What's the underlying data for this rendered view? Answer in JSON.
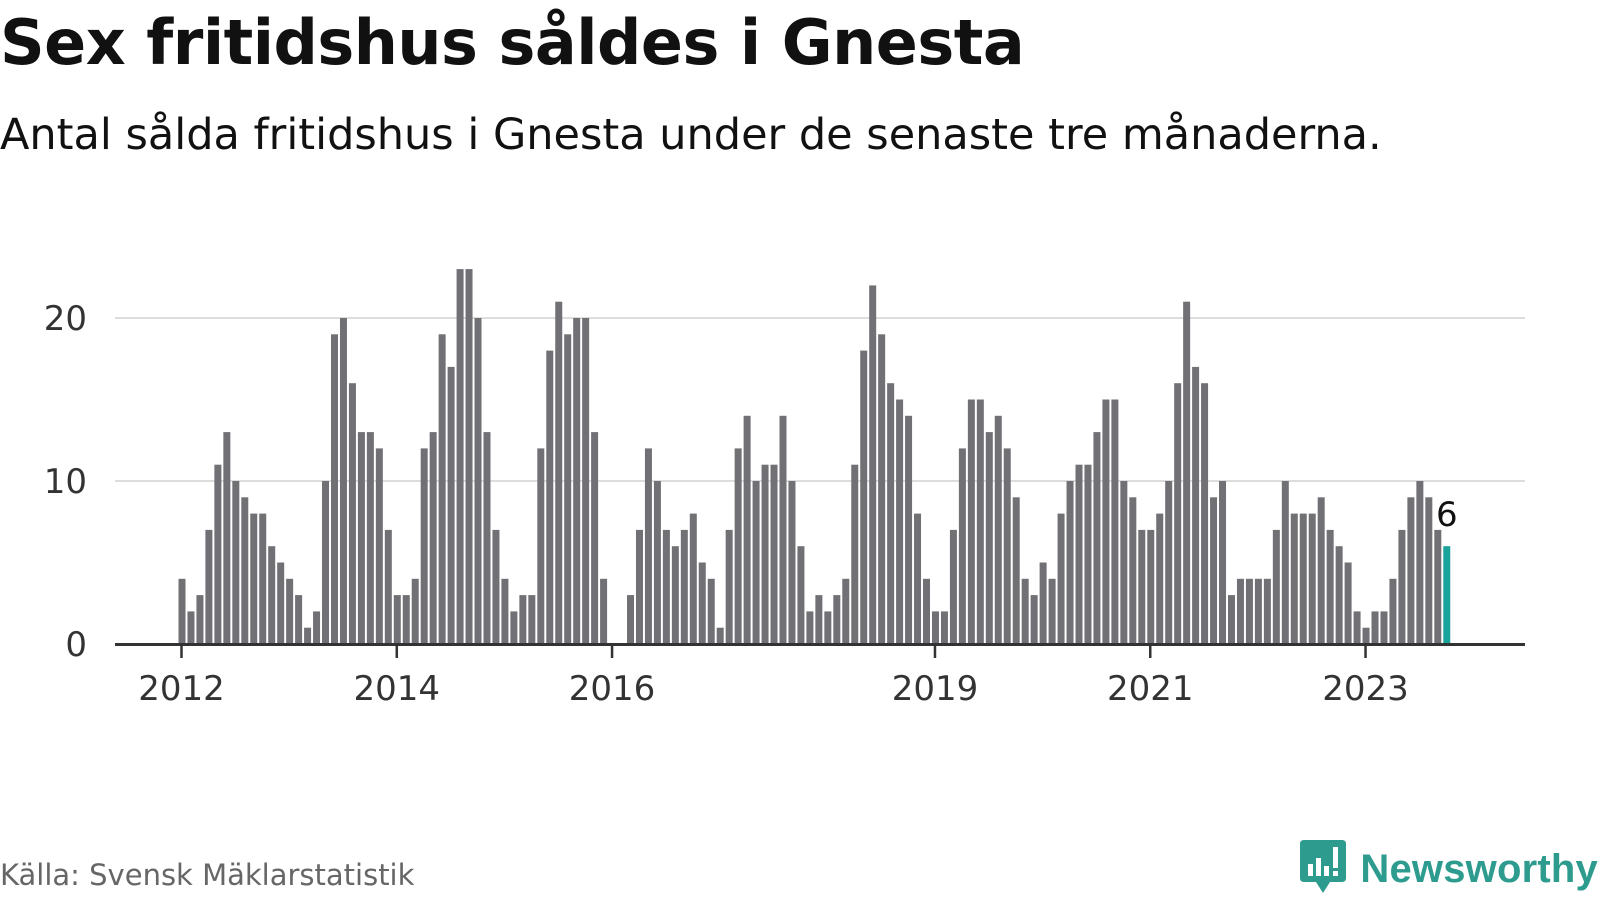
{
  "title": "Sex fritidshus såldes i Gnesta",
  "subtitle": "Antal sålda fritidshus i Gnesta under de senaste tre månaderna.",
  "source": "Källa: Svensk Mäklarstatistik",
  "brand": {
    "name": "Newsworthy",
    "icon": "newsworthy-logo-icon",
    "color": "#2e9b8f"
  },
  "colors": {
    "bar": "#717075",
    "highlight": "#1aa39b",
    "grid": "#dddddd",
    "axis": "#333333",
    "text": "#333333"
  },
  "chart_data": {
    "type": "bar",
    "x_start": "2012-01",
    "x_end": "2023-10",
    "values": [
      4,
      2,
      3,
      7,
      11,
      13,
      10,
      9,
      8,
      8,
      6,
      5,
      4,
      3,
      1,
      2,
      10,
      19,
      20,
      16,
      13,
      13,
      12,
      7,
      3,
      3,
      4,
      12,
      13,
      19,
      17,
      23,
      23,
      20,
      13,
      7,
      4,
      2,
      3,
      3,
      12,
      18,
      21,
      19,
      20,
      20,
      13,
      4,
      0,
      0,
      3,
      7,
      12,
      10,
      7,
      6,
      7,
      8,
      5,
      4,
      1,
      7,
      12,
      14,
      10,
      11,
      11,
      14,
      10,
      6,
      2,
      3,
      2,
      3,
      4,
      11,
      18,
      22,
      19,
      16,
      15,
      14,
      8,
      4,
      2,
      2,
      7,
      12,
      15,
      15,
      13,
      14,
      12,
      9,
      4,
      3,
      5,
      4,
      8,
      10,
      11,
      11,
      13,
      15,
      15,
      10,
      9,
      7,
      7,
      8,
      10,
      16,
      21,
      17,
      16,
      9,
      10,
      3,
      4,
      4,
      4,
      4,
      7,
      10,
      8,
      8,
      8,
      9,
      7,
      6,
      5,
      2,
      1,
      2,
      2,
      4,
      7,
      9,
      10,
      9,
      7,
      6
    ],
    "highlight_last": true,
    "last_value_label": "6",
    "ylim": [
      0,
      23
    ],
    "yticks": [
      0,
      10,
      20
    ],
    "xticks": [
      "2012",
      "2014",
      "2016",
      "2019",
      "2021",
      "2023"
    ],
    "grid": true
  }
}
